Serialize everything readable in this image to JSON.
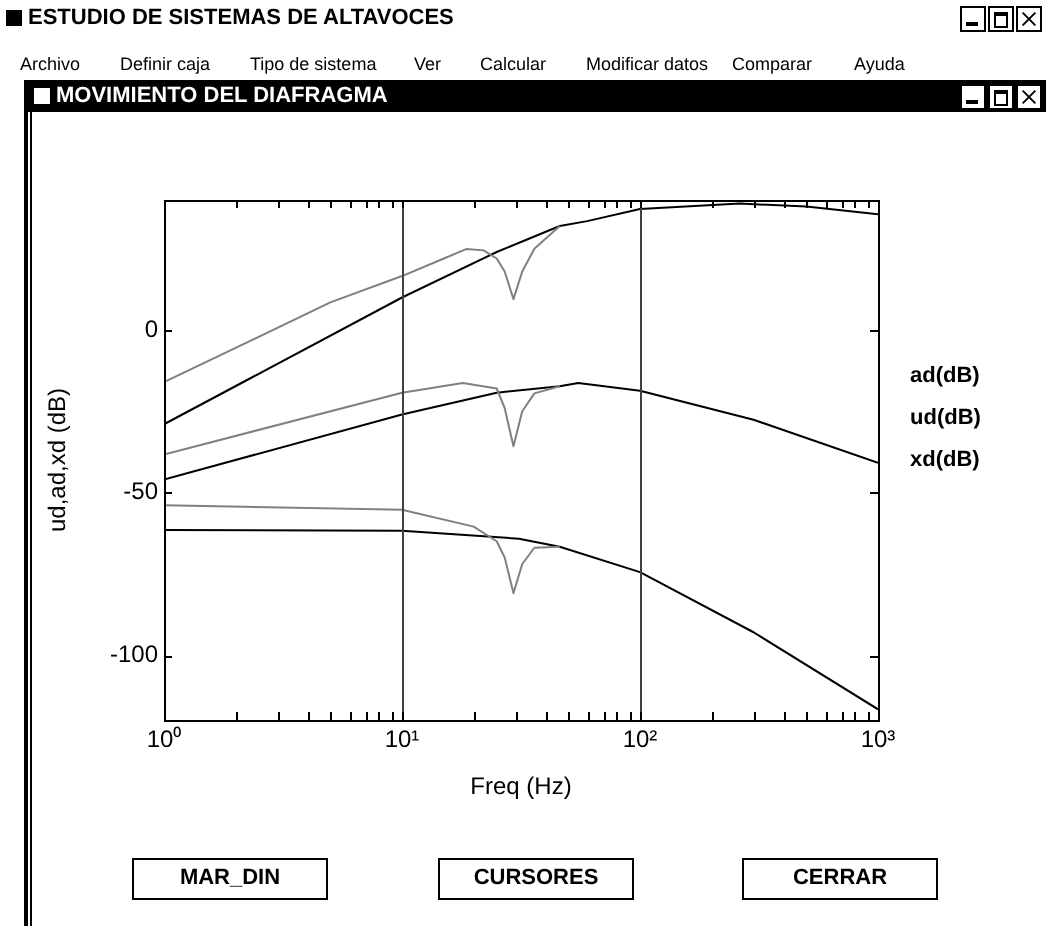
{
  "chart_data": {
    "type": "line",
    "title": "ESTUDIO DE SISTEMAS DE ALTAVOCES",
    "subtitle": "MOVIMIENTO DEL DIAFRAGMA",
    "xlabel": "Freq (Hz)",
    "ylabel": "ud,ad,xd (dB)",
    "log": "x",
    "xlim": [
      1,
      1000
    ],
    "ylim": [
      -120,
      40
    ],
    "xticks": [
      {
        "value": 1,
        "label": "10⁰"
      },
      {
        "value": 2,
        "label": null
      },
      {
        "value": 3,
        "label": null
      },
      {
        "value": 4,
        "label": null
      },
      {
        "value": 5,
        "label": null
      },
      {
        "value": 6,
        "label": null
      },
      {
        "value": 7,
        "label": null
      },
      {
        "value": 8,
        "label": null
      },
      {
        "value": 9,
        "label": null
      },
      {
        "value": 10,
        "label": "10¹"
      },
      {
        "value": 20,
        "label": null
      },
      {
        "value": 30,
        "label": null
      },
      {
        "value": 40,
        "label": null
      },
      {
        "value": 50,
        "label": null
      },
      {
        "value": 60,
        "label": null
      },
      {
        "value": 70,
        "label": null
      },
      {
        "value": 80,
        "label": null
      },
      {
        "value": 90,
        "label": null
      },
      {
        "value": 100,
        "label": "10²"
      },
      {
        "value": 200,
        "label": null
      },
      {
        "value": 300,
        "label": null
      },
      {
        "value": 400,
        "label": null
      },
      {
        "value": 500,
        "label": null
      },
      {
        "value": 600,
        "label": null
      },
      {
        "value": 700,
        "label": null
      },
      {
        "value": 800,
        "label": null
      },
      {
        "value": 900,
        "label": null
      },
      {
        "value": 1000,
        "label": "10³"
      }
    ],
    "yticks": [
      -100,
      -50,
      0
    ],
    "legend": false,
    "marker": "none",
    "line_style": "solid",
    "series": [
      {
        "color": "#808080",
        "x": [
          1,
          2,
          5,
          10,
          15,
          18.6,
          22,
          25,
          27,
          29.4,
          32,
          36,
          46
        ],
        "values": [
          -16,
          -5.5,
          8.5,
          16.6,
          22,
          24.9,
          24.5,
          22,
          18,
          9.5,
          18,
          25,
          32
        ]
      },
      {
        "color": "#000000",
        "x": [
          1,
          10,
          25,
          46,
          60,
          100,
          263,
          500,
          1000
        ],
        "values": [
          -29,
          10,
          24,
          32,
          33.5,
          37.2,
          38.9,
          38,
          35.6
        ]
      },
      {
        "color": "#808080",
        "x": [
          1,
          10,
          18,
          25,
          27,
          29.4,
          32,
          36,
          46
        ],
        "values": [
          -38.3,
          -19.3,
          -16.3,
          -18,
          -24,
          -35.8,
          -25,
          -19.5,
          -17.3
        ]
      },
      {
        "color": "#000000",
        "x": [
          1,
          10,
          25,
          46,
          55,
          100,
          300,
          1000
        ],
        "values": [
          -46,
          -26,
          -19.3,
          -17.3,
          -16.3,
          -18.7,
          -27.6,
          -40.9
        ]
      },
      {
        "color": "#808080",
        "x": [
          1,
          10,
          20,
          25,
          27,
          29.4,
          32,
          36,
          46
        ],
        "values": [
          -53.9,
          -55.3,
          -60.5,
          -65,
          -70,
          -81,
          -72,
          -67,
          -66.7
        ]
      },
      {
        "color": "#000000",
        "x": [
          1,
          10,
          31,
          46,
          100,
          300,
          1000
        ],
        "values": [
          -61.5,
          -61.8,
          -64.2,
          -66.7,
          -74.5,
          -93,
          -116.7
        ]
      }
    ],
    "ref_lines": [
      {
        "axis": "x",
        "value": 10,
        "color": "#404040"
      },
      {
        "axis": "x",
        "value": 100,
        "color": "#404040"
      }
    ],
    "annotations": [
      "Archivo",
      "Definir caja",
      "Tipo de sistema",
      "Ver",
      "Calcular",
      "Modificar datos",
      "Comparar",
      "Ayuda",
      "ad(dB)",
      "ud(dB)",
      "xd(dB)",
      "MAR_DIN",
      "CURSORES",
      "CERRAR"
    ]
  }
}
